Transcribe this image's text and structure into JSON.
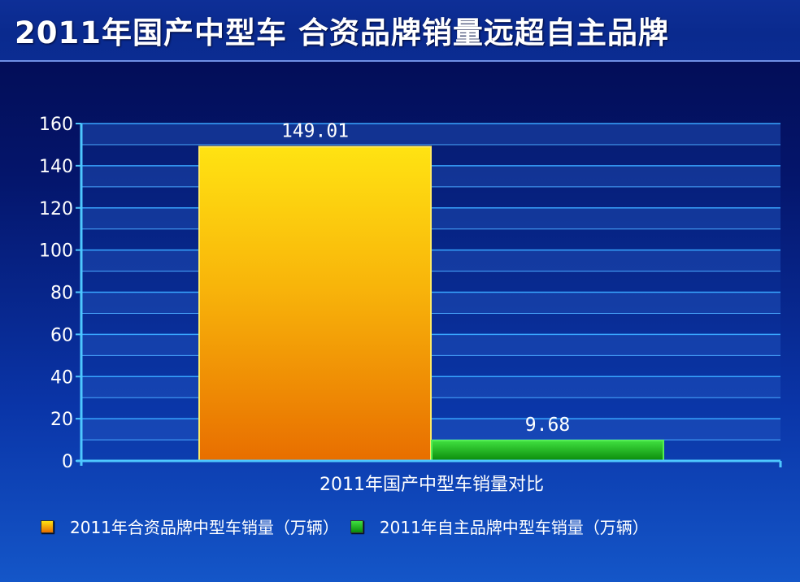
{
  "header": {
    "title": "2011年国产中型车 合资品牌销量远超自主品牌"
  },
  "chart_data": {
    "type": "bar",
    "categories": [
      "2011年国产中型车销量对比"
    ],
    "xlabel": "2011年国产中型车销量对比",
    "ylabel": "",
    "ylim": [
      0,
      160
    ],
    "yticks": [
      0,
      20,
      40,
      60,
      80,
      100,
      120,
      140,
      160
    ],
    "grid": true,
    "legend_position": "bottom",
    "series": [
      {
        "name": "2011年合资品牌中型车销量（万辆）",
        "values": [
          149.01
        ],
        "label": "149.01",
        "color": "#f5a20a"
      },
      {
        "name": "2011年自主品牌中型车销量（万辆）",
        "values": [
          9.68
        ],
        "label": "9.68",
        "color": "#1ea51e"
      }
    ]
  }
}
